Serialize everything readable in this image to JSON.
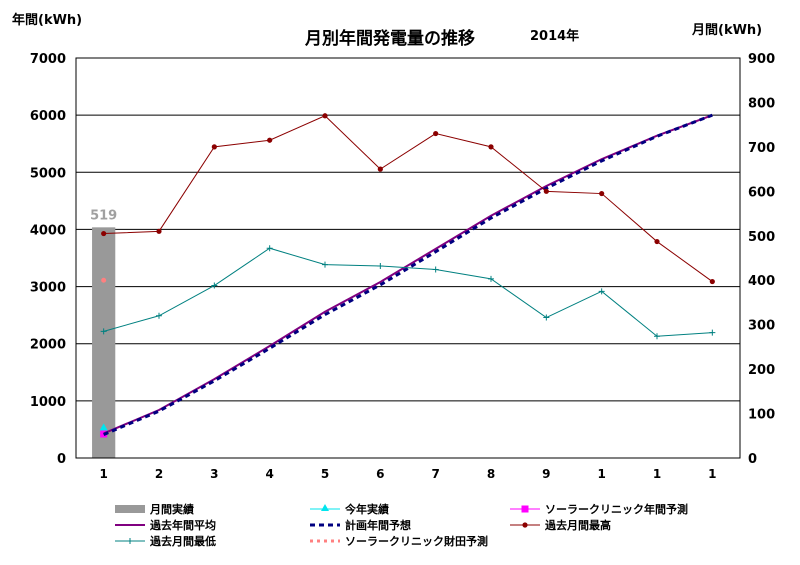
{
  "chart_data": {
    "type": "bar",
    "title": "月別年間発電量の推移",
    "subtitle": "2014年",
    "left_axis_label": "年間(kWh)",
    "right_axis_label": "月間(kWh)",
    "ylim_left": [
      0,
      7000
    ],
    "ylim_right": [
      0,
      900
    ],
    "yticks_left": [
      "0",
      "1000",
      "2000",
      "3000",
      "4000",
      "5000",
      "6000",
      "7000"
    ],
    "yticks_right": [
      "0",
      "100",
      "200",
      "300",
      "400",
      "500",
      "600",
      "700",
      "800",
      "900"
    ],
    "categories": [
      "1",
      "2",
      "3",
      "4",
      "5",
      "6",
      "7",
      "8",
      "9",
      "1",
      "1",
      "1"
    ],
    "grid": true,
    "legend_position": "bottom",
    "series": [
      {
        "name": "月間実績",
        "kind": "bar",
        "axis": "right",
        "color": "#999999",
        "values": [
          519,
          null,
          null,
          null,
          null,
          null,
          null,
          null,
          null,
          null,
          null,
          null
        ],
        "data_label": "519"
      },
      {
        "name": "今年実績",
        "kind": "line",
        "axis": "left",
        "color": "#00e5ee",
        "values": [
          519,
          null,
          null,
          null,
          null,
          null,
          null,
          null,
          null,
          null,
          null,
          null
        ]
      },
      {
        "name": "ソーラークリニック年間予測",
        "kind": "line",
        "axis": "left",
        "color": "#ff00ff",
        "values": [
          420,
          null,
          null,
          null,
          null,
          null,
          null,
          null,
          null,
          null,
          null,
          null
        ]
      },
      {
        "name": "過去年間平均",
        "kind": "line",
        "axis": "left",
        "color": "#800080",
        "values": [
          430,
          840,
          1380,
          1960,
          2560,
          3080,
          3660,
          4240,
          4760,
          5230,
          5640,
          6000
        ]
      },
      {
        "name": "計画年間予想",
        "kind": "line",
        "axis": "left",
        "color": "#000080",
        "values": [
          410,
          820,
          1350,
          1920,
          2510,
          3030,
          3610,
          4200,
          4720,
          5200,
          5630,
          6000
        ]
      },
      {
        "name": "過去月間最高",
        "kind": "line",
        "axis": "right",
        "color": "#8b0000",
        "values": [
          505,
          510,
          700,
          715,
          770,
          650,
          730,
          700,
          600,
          595,
          487,
          397
        ]
      },
      {
        "name": "過去月間最低",
        "kind": "line",
        "axis": "right",
        "color": "#008080",
        "values": [
          285,
          320,
          388,
          472,
          435,
          432,
          424,
          403,
          316,
          375,
          274,
          282
        ]
      },
      {
        "name": "ソーラークリニック財田予測",
        "kind": "point",
        "axis": "right",
        "color": "#ff8080",
        "values": [
          400,
          null,
          null,
          null,
          null,
          null,
          null,
          null,
          null,
          null,
          null,
          null
        ]
      }
    ]
  }
}
